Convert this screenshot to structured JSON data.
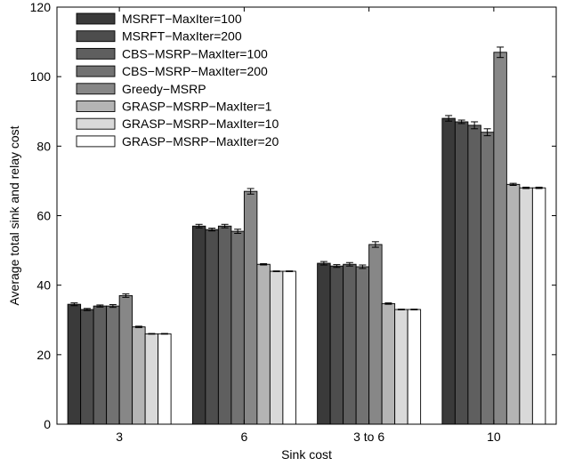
{
  "chart_data": {
    "type": "bar",
    "title": "",
    "xlabel": "Sink cost",
    "ylabel": "Average total sink and relay cost",
    "categories": [
      "3",
      "6",
      "3 to 6",
      "10"
    ],
    "ylim": [
      0,
      120
    ],
    "yticks": [
      0,
      20,
      40,
      60,
      80,
      100,
      120
    ],
    "legend_position": "top-left",
    "grid": false,
    "series": [
      {
        "name": "MSRFT−MaxIter=100",
        "color": "#3a3a3a",
        "values": [
          34.5,
          57,
          46.3,
          88
        ],
        "errors": [
          0.4,
          0.5,
          0.5,
          0.8
        ]
      },
      {
        "name": "MSRFT−MaxIter=200",
        "color": "#4d4d4d",
        "values": [
          33,
          56,
          45.5,
          87
        ],
        "errors": [
          0.3,
          0.4,
          0.4,
          0.5
        ]
      },
      {
        "name": "CBS−MSRP−MaxIter=100",
        "color": "#5f5f5f",
        "values": [
          34,
          57,
          46,
          86
        ],
        "errors": [
          0.3,
          0.5,
          0.5,
          1.0
        ]
      },
      {
        "name": "CBS−MSRP−MaxIter=200",
        "color": "#727272",
        "values": [
          34,
          55.5,
          45.3,
          84
        ],
        "errors": [
          0.4,
          0.6,
          0.5,
          1.0
        ]
      },
      {
        "name": "Greedy−MSRP",
        "color": "#878787",
        "values": [
          37,
          67,
          51.7,
          107
        ],
        "errors": [
          0.5,
          0.8,
          0.8,
          1.5
        ]
      },
      {
        "name": "GRASP−MSRP−MaxIter=1",
        "color": "#b4b4b4",
        "values": [
          28,
          46,
          34.7,
          69
        ],
        "errors": [
          0.2,
          0.2,
          0.2,
          0.3
        ]
      },
      {
        "name": "GRASP−MSRP−MaxIter=10",
        "color": "#d9d9d9",
        "values": [
          26,
          44,
          33,
          68
        ],
        "errors": [
          0.1,
          0.1,
          0.1,
          0.2
        ]
      },
      {
        "name": "GRASP−MSRP−MaxIter=20",
        "color": "#ffffff",
        "values": [
          26,
          44,
          33,
          68
        ],
        "errors": [
          0.1,
          0.1,
          0.1,
          0.2
        ]
      }
    ]
  }
}
